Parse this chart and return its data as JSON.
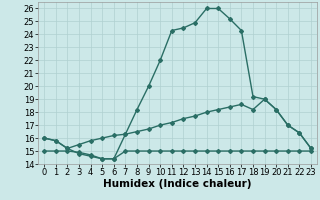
{
  "xlabel": "Humidex (Indice chaleur)",
  "background_color": "#cce8e8",
  "grid_color": "#b0d0d0",
  "line_color": "#2a6e65",
  "xlim": [
    -0.5,
    23.5
  ],
  "ylim": [
    14,
    26.5
  ],
  "xticks": [
    0,
    1,
    2,
    3,
    4,
    5,
    6,
    7,
    8,
    9,
    10,
    11,
    12,
    13,
    14,
    15,
    16,
    17,
    18,
    19,
    20,
    21,
    22,
    23
  ],
  "yticks": [
    14,
    15,
    16,
    17,
    18,
    19,
    20,
    21,
    22,
    23,
    24,
    25,
    26
  ],
  "line1_x": [
    0,
    1,
    2,
    3,
    4,
    5,
    6,
    7,
    8,
    9,
    10,
    11,
    12,
    13,
    14,
    15,
    16,
    17,
    18,
    19,
    20,
    21,
    22,
    23
  ],
  "line1_y": [
    16.0,
    15.8,
    15.2,
    14.8,
    14.6,
    14.4,
    14.4,
    16.3,
    18.2,
    20.0,
    22.0,
    24.3,
    24.5,
    24.9,
    26.0,
    26.0,
    25.2,
    24.3,
    19.2,
    19.0,
    18.2,
    17.0,
    16.4,
    15.2
  ],
  "line2_x": [
    0,
    1,
    2,
    3,
    4,
    5,
    6,
    7,
    8,
    9,
    10,
    11,
    12,
    13,
    14,
    15,
    16,
    17,
    18,
    19,
    20,
    21,
    22,
    23
  ],
  "line2_y": [
    16.0,
    15.8,
    15.2,
    15.5,
    15.8,
    16.0,
    16.2,
    16.3,
    16.5,
    16.7,
    17.0,
    17.2,
    17.5,
    17.7,
    18.0,
    18.2,
    18.4,
    18.6,
    18.2,
    19.0,
    18.2,
    17.0,
    16.4,
    15.2
  ],
  "line3_x": [
    0,
    1,
    2,
    3,
    4,
    5,
    6,
    7,
    8,
    9,
    10,
    11,
    12,
    13,
    14,
    15,
    16,
    17,
    18,
    19,
    20,
    21,
    22,
    23
  ],
  "line3_y": [
    15.0,
    15.0,
    15.0,
    14.9,
    14.7,
    14.4,
    14.4,
    15.0,
    15.0,
    15.0,
    15.0,
    15.0,
    15.0,
    15.0,
    15.0,
    15.0,
    15.0,
    15.0,
    15.0,
    15.0,
    15.0,
    15.0,
    15.0,
    15.0
  ],
  "marker": "D",
  "marker_size": 2.0,
  "line_width": 1.0,
  "xlabel_fontsize": 7.5,
  "tick_fontsize": 6.0
}
